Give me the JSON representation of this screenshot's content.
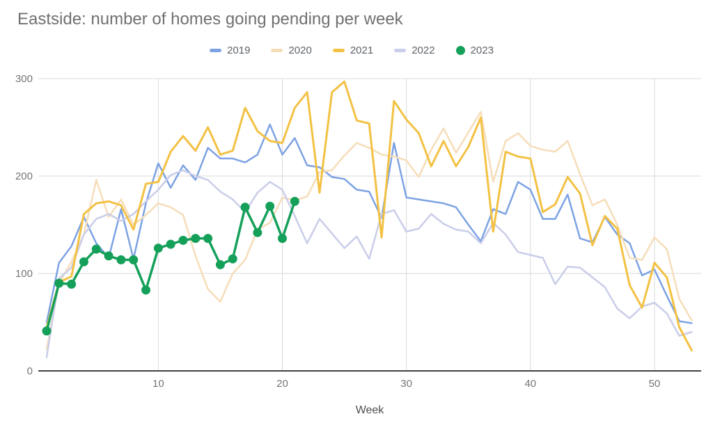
{
  "chart_data": {
    "type": "line",
    "title": "Eastside: number of homes going pending per week",
    "xlabel": "Week",
    "ylabel": "",
    "xlim": [
      1,
      53
    ],
    "ylim": [
      0,
      300
    ],
    "x_ticks": [
      10,
      20,
      30,
      40,
      50
    ],
    "y_ticks": [
      0,
      100,
      200,
      300
    ],
    "grid": true,
    "legend_position": "top",
    "x_unit": "week_number",
    "series": [
      {
        "name": "2019",
        "color": "#7da2e3",
        "style": "line",
        "values": [
          50,
          111,
          128,
          158,
          131,
          116,
          166,
          115,
          172,
          213,
          188,
          211,
          196,
          229,
          218,
          218,
          214,
          222,
          253,
          222,
          239,
          211,
          209,
          199,
          197,
          186,
          184,
          157,
          234,
          178,
          176,
          174,
          172,
          168,
          150,
          133,
          166,
          161,
          194,
          186,
          156,
          156,
          181,
          136,
          132,
          158,
          140,
          131,
          98,
          104,
          77,
          51,
          49
        ]
      },
      {
        "name": "2020",
        "color": "#f6ddb9",
        "style": "line",
        "values": [
          22,
          90,
          112,
          140,
          196,
          158,
          176,
          150,
          160,
          172,
          168,
          160,
          118,
          84,
          71,
          100,
          114,
          145,
          152,
          178,
          175,
          179,
          204,
          206,
          221,
          234,
          229,
          222,
          220,
          216,
          199,
          227,
          249,
          224,
          245,
          266,
          194,
          236,
          244,
          231,
          227,
          225,
          236,
          202,
          170,
          176,
          150,
          116,
          114,
          137,
          125,
          74,
          52
        ]
      },
      {
        "name": "2021",
        "color": "#f3c143",
        "style": "line",
        "values": [
          45,
          91,
          97,
          161,
          172,
          174,
          170,
          145,
          192,
          194,
          225,
          241,
          226,
          250,
          222,
          226,
          270,
          246,
          236,
          234,
          270,
          286,
          183,
          286,
          297,
          257,
          254,
          137,
          277,
          258,
          244,
          210,
          236,
          210,
          230,
          260,
          143,
          225,
          220,
          218,
          163,
          171,
          199,
          182,
          129,
          159,
          146,
          88,
          65,
          111,
          96,
          45,
          21
        ]
      },
      {
        "name": "2022",
        "color": "#c9cde9",
        "style": "line",
        "values": [
          14,
          95,
          106,
          140,
          156,
          161,
          154,
          161,
          174,
          186,
          201,
          206,
          200,
          196,
          184,
          176,
          163,
          183,
          194,
          186,
          159,
          131,
          156,
          141,
          126,
          138,
          115,
          161,
          165,
          143,
          146,
          161,
          151,
          145,
          143,
          131,
          152,
          140,
          122,
          119,
          116,
          89,
          107,
          106,
          96,
          86,
          64,
          54,
          66,
          70,
          59,
          36,
          40
        ]
      },
      {
        "name": "2023",
        "color": "#15a05a",
        "style": "line+markers",
        "values": [
          41,
          90,
          89,
          112,
          125,
          118,
          114,
          114,
          83,
          126,
          130,
          134,
          136,
          136,
          109,
          115,
          168,
          142,
          169,
          136,
          174
        ]
      }
    ]
  },
  "colors": {
    "background": "#ffffff",
    "gridline": "#dadada",
    "axis_line": "#424242",
    "tick_label": "#757575",
    "title_text": "#707070",
    "legend_text": "#5f6368"
  }
}
